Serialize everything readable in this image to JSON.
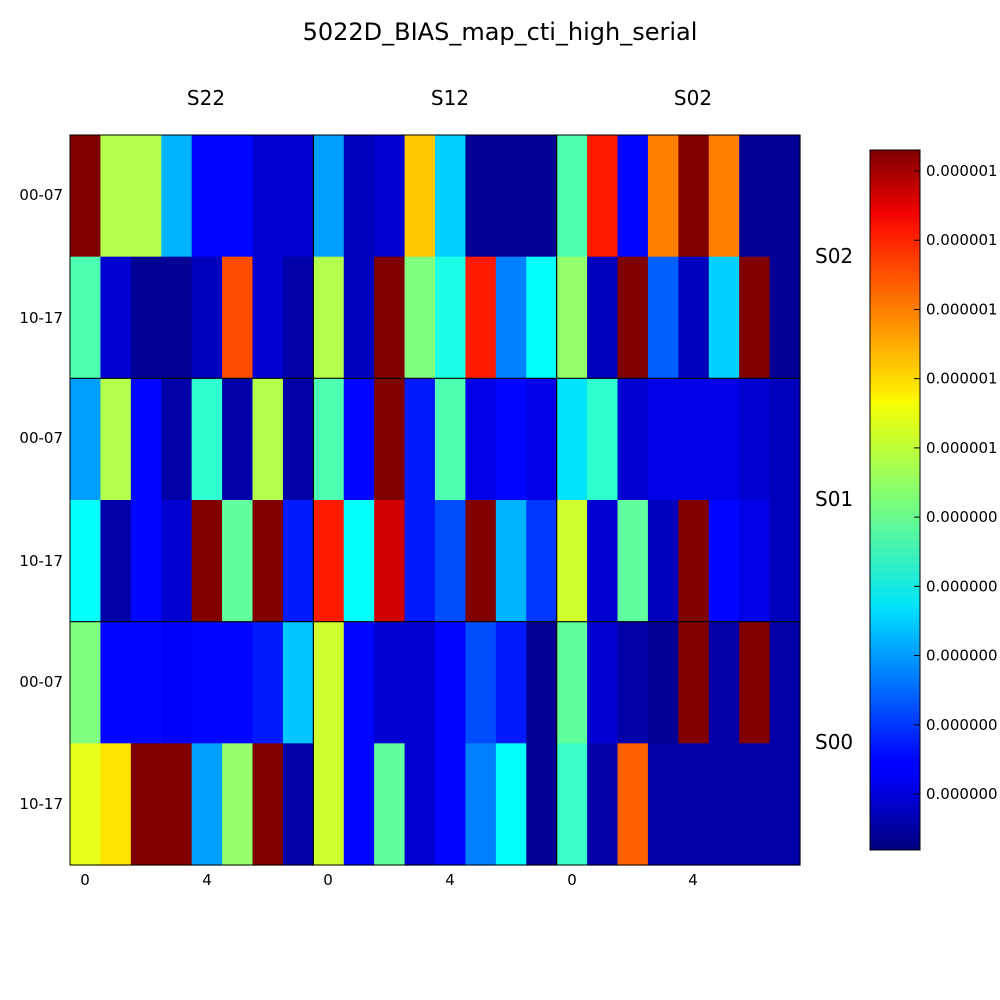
{
  "chart_data": {
    "type": "heatmap",
    "title": "5022D_BIAS_map_cti_high_serial",
    "colormap": "jet",
    "column_groups": [
      "S22",
      "S12",
      "S02"
    ],
    "row_groups": [
      "S02",
      "S01",
      "S00"
    ],
    "row_labels": [
      "00-07",
      "10-17"
    ],
    "x_ticks": [
      "0",
      "4"
    ],
    "colorbar_ticks": [
      "0.000000",
      "0.000000",
      "0.000000",
      "0.000000",
      "0.000000",
      "0.000001",
      "0.000001",
      "0.000001",
      "0.000001",
      "0.000001"
    ],
    "values": [
      [
        1.0,
        0.55,
        0.55,
        0.3,
        0.13,
        0.13,
        0.08,
        0.08,
        0.28,
        0.06,
        0.08,
        0.68,
        0.33,
        0.02,
        0.02,
        0.02,
        0.45,
        0.85,
        0.13,
        0.75,
        1.0,
        0.75,
        0.02,
        0.02
      ],
      [
        0.45,
        0.08,
        0.02,
        0.02,
        0.06,
        0.8,
        0.08,
        0.04,
        0.55,
        0.06,
        1.0,
        0.5,
        0.4,
        0.85,
        0.25,
        0.38,
        0.52,
        0.06,
        1.0,
        0.22,
        0.06,
        0.33,
        1.0,
        0.02
      ],
      [
        0.28,
        0.55,
        0.13,
        0.04,
        0.42,
        0.04,
        0.55,
        0.04,
        0.45,
        0.13,
        1.0,
        0.15,
        0.45,
        0.1,
        0.13,
        0.1,
        0.35,
        0.42,
        0.08,
        0.1,
        0.1,
        0.1,
        0.08,
        0.06
      ],
      [
        0.38,
        0.04,
        0.13,
        0.08,
        1.0,
        0.47,
        1.0,
        0.15,
        0.85,
        0.38,
        0.92,
        0.15,
        0.2,
        1.0,
        0.3,
        0.18,
        0.58,
        0.08,
        0.47,
        0.06,
        1.0,
        0.13,
        0.1,
        0.06
      ],
      [
        0.5,
        0.13,
        0.13,
        0.12,
        0.13,
        0.13,
        0.15,
        0.32,
        0.58,
        0.13,
        0.08,
        0.08,
        0.13,
        0.2,
        0.15,
        0.02,
        0.47,
        0.08,
        0.04,
        0.02,
        1.0,
        0.04,
        1.0,
        0.04
      ],
      [
        0.6,
        0.65,
        1.0,
        1.0,
        0.28,
        0.52,
        1.0,
        0.04,
        0.58,
        0.13,
        0.47,
        0.08,
        0.13,
        0.25,
        0.38,
        0.02,
        0.43,
        0.04,
        0.78,
        0.04,
        0.04,
        0.04,
        0.04,
        0.04
      ]
    ]
  }
}
